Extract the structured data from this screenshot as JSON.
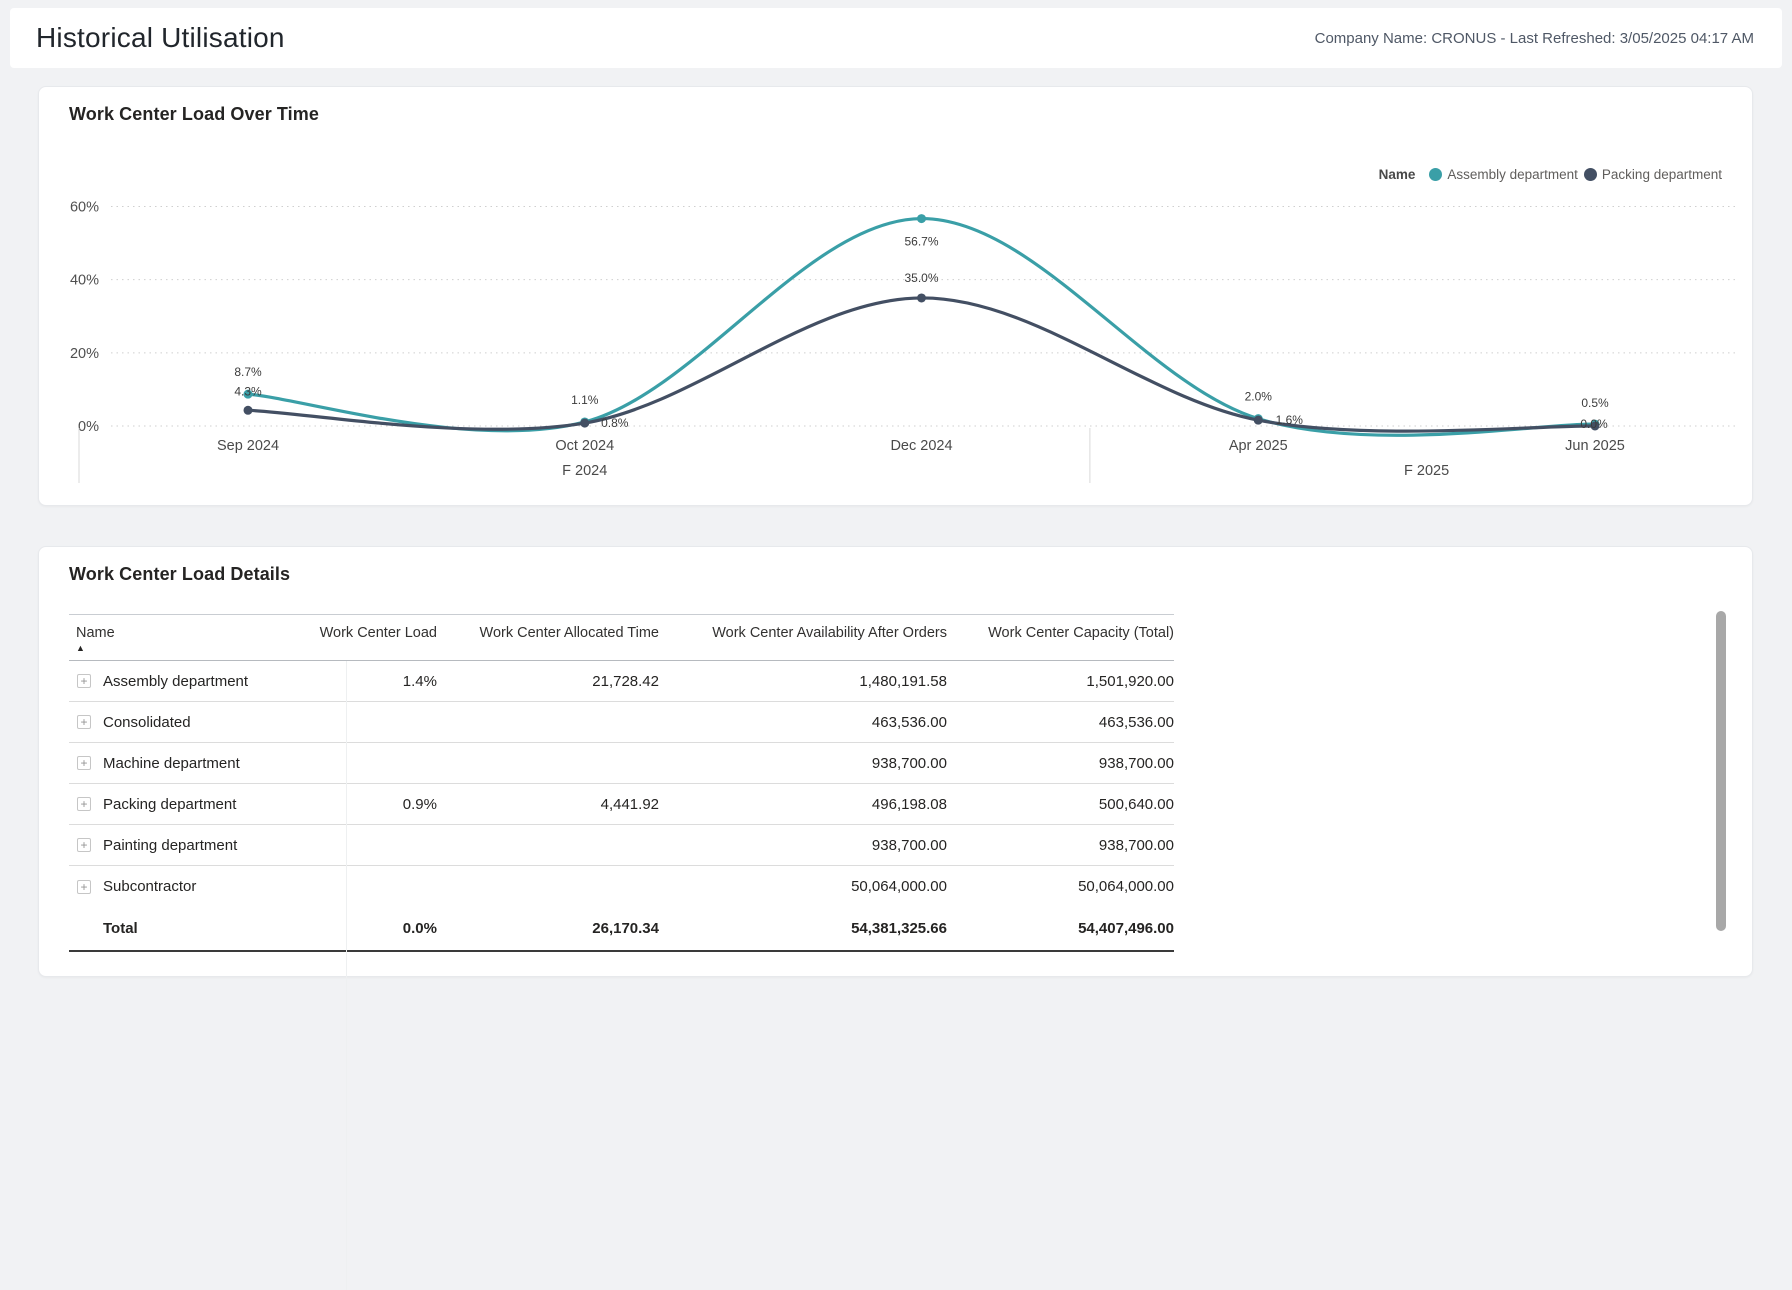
{
  "page": {
    "title": "Historical Utilisation",
    "meta": "Company Name: CRONUS - Last Refreshed: 3/05/2025 04:17 AM"
  },
  "colors": {
    "accent_teal": "#3a9fa7",
    "accent_slate": "#434f63",
    "page_bg": "#f1f2f4",
    "card_bg": "#ffffff"
  },
  "chart_data": {
    "type": "line",
    "title": "Work Center Load Over Time",
    "legend_title": "Name",
    "legend_position": "top-right",
    "grid": "dotted-horizontal",
    "x": [
      "Sep 2024",
      "Oct 2024",
      "Dec 2024",
      "Apr 2025",
      "Jun 2025"
    ],
    "x_groups": [
      {
        "label": "F 2024",
        "from": 0,
        "to": 2
      },
      {
        "label": "F 2025",
        "from": 3,
        "to": 4
      }
    ],
    "y_ticks": [
      {
        "value": 0,
        "label": "0%"
      },
      {
        "value": 20,
        "label": "20%"
      },
      {
        "value": 40,
        "label": "40%"
      },
      {
        "value": 60,
        "label": "60%"
      }
    ],
    "ylim": [
      0,
      60
    ],
    "series": [
      {
        "name": "Assembly department",
        "color": "#3a9fa7",
        "values": [
          8.7,
          1.1,
          56.7,
          2.0,
          0.5
        ],
        "labels": [
          "8.7%",
          "1.1%",
          "56.7%",
          "2.0%",
          "0.5%"
        ],
        "label_offsets": [
          [
            0,
            -22
          ],
          [
            0,
            -22
          ],
          [
            0,
            23
          ],
          [
            0,
            -22
          ],
          [
            0,
            -21
          ]
        ]
      },
      {
        "name": "Packing department",
        "color": "#434f63",
        "values": [
          4.3,
          0.8,
          35.0,
          1.6,
          0.0
        ],
        "labels": [
          "4.3%",
          "0.8%",
          "35.0%",
          "1.6%",
          "0.0%"
        ],
        "label_offsets": [
          [
            0,
            -19
          ],
          [
            30,
            0
          ],
          [
            0,
            -20
          ],
          [
            31,
            0
          ],
          [
            -1,
            -2
          ]
        ]
      }
    ]
  },
  "table": {
    "title": "Work Center Load Details",
    "columns": [
      "Name",
      "Work Center Load",
      "Work Center Allocated Time",
      "Work Center Availability After Orders",
      "Work Center Capacity (Total)"
    ],
    "sort": {
      "column": "Name",
      "direction": "ascending"
    },
    "rows": [
      {
        "name": "Assembly department",
        "load": "1.4%",
        "allocated": "21,728.42",
        "availability": "1,480,191.58",
        "capacity": "1,501,920.00"
      },
      {
        "name": "Consolidated",
        "load": "",
        "allocated": "",
        "availability": "463,536.00",
        "capacity": "463,536.00"
      },
      {
        "name": "Machine department",
        "load": "",
        "allocated": "",
        "availability": "938,700.00",
        "capacity": "938,700.00"
      },
      {
        "name": "Packing department",
        "load": "0.9%",
        "allocated": "4,441.92",
        "availability": "496,198.08",
        "capacity": "500,640.00"
      },
      {
        "name": "Painting department",
        "load": "",
        "allocated": "",
        "availability": "938,700.00",
        "capacity": "938,700.00"
      },
      {
        "name": "Subcontractor",
        "load": "",
        "allocated": "",
        "availability": "50,064,000.00",
        "capacity": "50,064,000.00"
      }
    ],
    "total": {
      "name": "Total",
      "load": "0.0%",
      "allocated": "26,170.34",
      "availability": "54,381,325.66",
      "capacity": "54,407,496.00"
    }
  }
}
